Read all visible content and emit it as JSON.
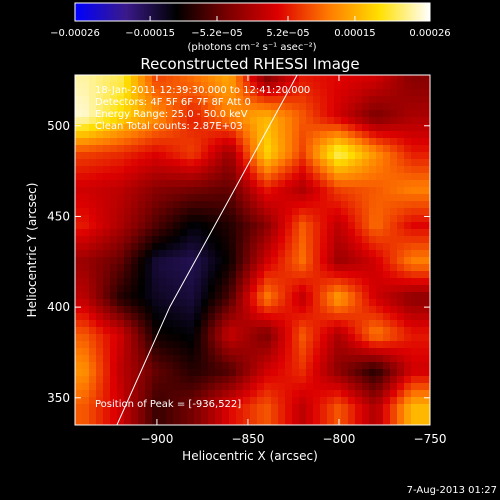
{
  "chart_data": {
    "type": "heatmap",
    "title": "Reconstructed RHESSI Image",
    "xlabel": "Heliocentric X (arcsec)",
    "ylabel": "Heliocentric Y (arcsec)",
    "xlim": [
      -945,
      -750
    ],
    "ylim": [
      335,
      528
    ],
    "x_ticks": [
      -900,
      -850,
      -800,
      -750
    ],
    "x_tick_labels": [
      "−900",
      "−850",
      "−800",
      "−750"
    ],
    "y_ticks": [
      350,
      400,
      450,
      500
    ],
    "y_tick_labels": [
      "350",
      "400",
      "450",
      "500"
    ],
    "colorbar": {
      "min": -0.00026,
      "max": 0.00026,
      "ticks": [
        -0.00026,
        -0.00015,
        -5.2e-05,
        5.2e-05,
        0.00015,
        0.00026
      ],
      "tick_labels": [
        "−0.00026",
        "−0.00015",
        "−5.2e−05",
        "5.2e−05",
        "0.00015",
        "0.00026"
      ],
      "unit_label": "(photons cm⁻² s⁻¹ asec⁻²)",
      "colors": [
        "#0000ff",
        "#3a1a8a",
        "#000000",
        "#7a0000",
        "#dd0000",
        "#ff7a00",
        "#ffe000",
        "#ffffff"
      ]
    },
    "info_lines": [
      "18-Jan-2011 12:39:30.000 to 12:41:20.000",
      "Detectors: 4F 5F 6F 7F 8F  Att 0",
      "Energy Range: 25.0 - 50.0 keV",
      "Clean     Total counts: 2.87E+03"
    ],
    "peak_label": "Position of Peak = [-936,522]",
    "peak": [
      -936,
      522
    ],
    "limb_line": [
      [
        -922,
        335
      ],
      [
        -893,
        400
      ],
      [
        -860,
        460
      ],
      [
        -823,
        528
      ]
    ],
    "field_grid": {
      "x": [
        -940,
        -920,
        -900,
        -880,
        -860,
        -840,
        -820,
        -800,
        -780,
        -760
      ],
      "y": [
        525,
        505,
        485,
        465,
        445,
        425,
        405,
        385,
        365,
        345
      ],
      "values": [
        [
          0.9,
          0.8,
          0.3,
          0.4,
          0.55,
          -0.1,
          0.2,
          0.15,
          0.1,
          -0.1
        ],
        [
          0.95,
          0.7,
          0.5,
          0.2,
          0.45,
          0.6,
          0.35,
          0.1,
          -0.15,
          0.0
        ],
        [
          0.3,
          0.25,
          0.15,
          0.3,
          -0.05,
          0.7,
          0.3,
          0.85,
          0.5,
          0.2
        ],
        [
          0.1,
          0.05,
          -0.1,
          -0.15,
          -0.2,
          0.2,
          0.0,
          0.3,
          0.35,
          0.45
        ],
        [
          0.2,
          0.0,
          -0.25,
          -0.45,
          -0.35,
          -0.1,
          0.35,
          0.05,
          0.4,
          0.15
        ],
        [
          -0.05,
          -0.2,
          -0.55,
          -0.6,
          -0.4,
          0.1,
          0.4,
          -0.05,
          0.1,
          0.45
        ],
        [
          0.05,
          -0.35,
          -0.5,
          -0.55,
          -0.25,
          0.45,
          0.05,
          0.55,
          0.1,
          -0.1
        ],
        [
          0.35,
          0.1,
          -0.4,
          -0.45,
          0.1,
          -0.15,
          0.35,
          0.0,
          0.45,
          0.2
        ],
        [
          0.5,
          0.05,
          -0.2,
          -0.35,
          -0.25,
          0.1,
          0.25,
          -0.1,
          -0.35,
          0.1
        ],
        [
          0.35,
          0.1,
          -0.3,
          -0.15,
          0.15,
          0.35,
          0.05,
          0.35,
          0.0,
          0.6
        ]
      ]
    }
  },
  "footer": {
    "timestamp": "7-Aug-2013 01:27"
  }
}
